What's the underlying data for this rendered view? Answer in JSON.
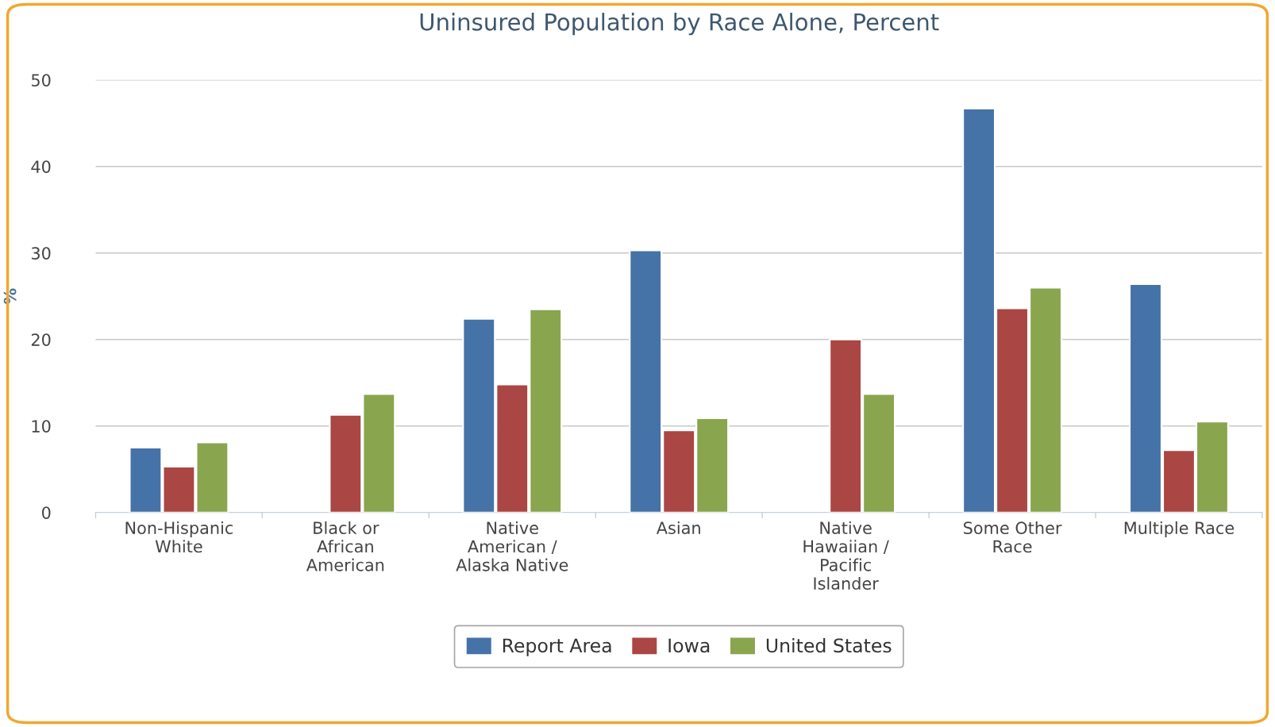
{
  "chart_data": {
    "type": "bar",
    "title": "Uninsured Population by Race Alone, Percent",
    "ylabel": "%",
    "categories": [
      "Non-Hispanic White",
      "Black or African American",
      "Native American / Alaska Native",
      "Asian",
      "Native Hawaiian / Pacific Islander",
      "Some Other Race",
      "Multiple Race"
    ],
    "series": [
      {
        "name": "Report Area",
        "color": "#4572a7",
        "values": [
          7.5,
          null,
          22.4,
          30.3,
          null,
          46.7,
          26.4
        ]
      },
      {
        "name": "Iowa",
        "color": "#aa4643",
        "values": [
          5.3,
          11.3,
          14.8,
          9.5,
          20.0,
          23.6,
          7.2
        ]
      },
      {
        "name": "United States",
        "color": "#89a54e",
        "values": [
          8.1,
          13.7,
          23.5,
          10.9,
          13.7,
          26.0,
          10.5
        ]
      }
    ],
    "ylim": [
      0,
      50
    ],
    "yticks": [
      0,
      10,
      20,
      30,
      40,
      50
    ],
    "grid": "y",
    "legend": "bottom"
  }
}
